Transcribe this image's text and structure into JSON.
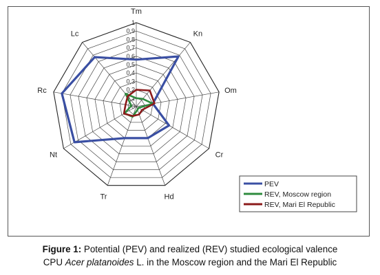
{
  "chart_data": {
    "type": "radar",
    "axes": [
      "Tm",
      "Kn",
      "Om",
      "Cr",
      "Hd",
      "Tr",
      "Nt",
      "Rc",
      "Lc"
    ],
    "rlim": [
      0,
      1
    ],
    "ticks": [
      "0",
      "0,1",
      "0,2",
      "0,3",
      "0,4",
      "0,5",
      "0,6",
      "0,7",
      "0,8",
      "0,9",
      "1"
    ],
    "grid": true,
    "legend_position": "bottom-right",
    "series": [
      {
        "name": "PEV",
        "color": "#3a4fa3",
        "values": [
          0.56,
          0.78,
          0.2,
          0.45,
          0.4,
          0.4,
          0.85,
          0.9,
          0.77
        ]
      },
      {
        "name": "REV, Moscow region",
        "color": "#2e8b3e",
        "values": [
          0.1,
          0.12,
          0.2,
          0.03,
          0.04,
          0.13,
          0.16,
          0.06,
          0.2
        ]
      },
      {
        "name": "REV, Mari El Republic",
        "color": "#8b1a1a",
        "values": [
          0.2,
          0.25,
          0.22,
          0.08,
          0.1,
          0.12,
          0.17,
          0.13,
          0.16
        ]
      }
    ]
  },
  "caption": {
    "label": "Figure 1:",
    "text_part1": " Potential (PEV) and realized (REV) studied ecological valence",
    "text_part2": "CPU ",
    "species": "Acer platanoides",
    "text_part3": " L. in the Moscow region and the Mari El Republic"
  }
}
